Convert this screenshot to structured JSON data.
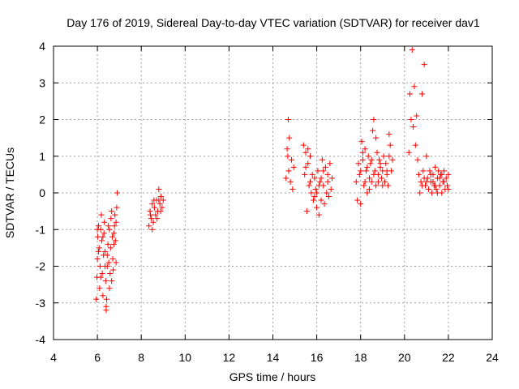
{
  "chart_data": {
    "type": "scatter",
    "title": "Day 176 of 2019, Sidereal Day-to-day VTEC variation (SDTVAR) for receiver dav1",
    "xlabel": "GPS time / hours",
    "ylabel": "SDTVAR / TECUs",
    "xlim": [
      4,
      24
    ],
    "ylim": [
      -4,
      4
    ],
    "xticks": [
      "4",
      "6",
      "8",
      "10",
      "12",
      "14",
      "16",
      "18",
      "20",
      "22",
      "24"
    ],
    "yticks": [
      "-4",
      "-3",
      "-2",
      "-1",
      "0",
      "1",
      "2",
      "3",
      "4"
    ],
    "grid": true,
    "marker": "plus",
    "color": "#ff0000",
    "series": [
      {
        "name": "dav1",
        "points": [
          [
            5.95,
            -2.9
          ],
          [
            5.98,
            -2.3
          ],
          [
            6.0,
            -1.8
          ],
          [
            6.02,
            -1.2
          ],
          [
            6.05,
            -0.9
          ],
          [
            6.08,
            -1.5
          ],
          [
            6.1,
            -2.6
          ],
          [
            6.12,
            -2.0
          ],
          [
            6.15,
            -1.0
          ],
          [
            6.18,
            -0.6
          ],
          [
            6.2,
            -1.3
          ],
          [
            6.22,
            -2.2
          ],
          [
            6.25,
            -2.8
          ],
          [
            6.28,
            -1.7
          ],
          [
            6.3,
            -1.1
          ],
          [
            6.32,
            -0.8
          ],
          [
            6.35,
            -1.6
          ],
          [
            6.38,
            -2.4
          ],
          [
            6.4,
            -3.1
          ],
          [
            6.42,
            -2.9
          ],
          [
            6.45,
            -2.0
          ],
          [
            6.48,
            -1.4
          ],
          [
            6.5,
            -0.9
          ],
          [
            6.52,
            -1.9
          ],
          [
            6.55,
            -2.6
          ],
          [
            6.58,
            -2.2
          ],
          [
            6.6,
            -1.5
          ],
          [
            6.62,
            -0.7
          ],
          [
            6.65,
            -0.5
          ],
          [
            6.68,
            -1.2
          ],
          [
            6.7,
            -1.8
          ],
          [
            6.72,
            -2.1
          ],
          [
            6.75,
            -1.4
          ],
          [
            6.78,
            -0.9
          ],
          [
            6.8,
            -0.6
          ],
          [
            6.82,
            -1.3
          ],
          [
            6.85,
            -1.9
          ],
          [
            6.88,
            -0.4
          ],
          [
            6.9,
            0.0
          ],
          [
            6.05,
            -1.6
          ],
          [
            6.15,
            -2.3
          ],
          [
            6.25,
            -1.2
          ],
          [
            6.35,
            -2.0
          ],
          [
            6.45,
            -1.7
          ],
          [
            6.55,
            -1.0
          ],
          [
            6.65,
            -2.4
          ],
          [
            6.75,
            -1.1
          ],
          [
            6.85,
            -0.8
          ],
          [
            6.0,
            -1.0
          ],
          [
            6.4,
            -3.2
          ],
          [
            8.35,
            -0.9
          ],
          [
            8.4,
            -0.5
          ],
          [
            8.45,
            -0.7
          ],
          [
            8.5,
            -0.3
          ],
          [
            8.55,
            -0.8
          ],
          [
            8.6,
            -0.4
          ],
          [
            8.65,
            -0.6
          ],
          [
            8.7,
            -0.2
          ],
          [
            8.75,
            -0.5
          ],
          [
            8.8,
            0.1
          ],
          [
            8.85,
            -0.3
          ],
          [
            8.9,
            -0.1
          ],
          [
            8.95,
            -0.4
          ],
          [
            9.0,
            -0.2
          ],
          [
            8.42,
            -0.6
          ],
          [
            8.58,
            -0.2
          ],
          [
            8.72,
            -0.7
          ],
          [
            8.88,
            -0.5
          ],
          [
            8.5,
            -1.0
          ],
          [
            8.8,
            -0.2
          ],
          [
            14.6,
            0.4
          ],
          [
            14.65,
            1.2
          ],
          [
            14.7,
            2.0
          ],
          [
            14.72,
            0.6
          ],
          [
            14.75,
            1.5
          ],
          [
            14.8,
            0.3
          ],
          [
            14.85,
            0.9
          ],
          [
            14.9,
            0.1
          ],
          [
            14.95,
            0.7
          ],
          [
            14.68,
            1.0
          ],
          [
            15.4,
            1.3
          ],
          [
            15.45,
            0.5
          ],
          [
            15.5,
            1.1
          ],
          [
            15.55,
            -0.5
          ],
          [
            15.6,
            0.8
          ],
          [
            15.65,
            0.2
          ],
          [
            15.7,
            1.0
          ],
          [
            15.75,
            0.0
          ],
          [
            15.8,
            0.5
          ],
          [
            15.85,
            -0.2
          ],
          [
            15.9,
            0.4
          ],
          [
            15.95,
            0.1
          ],
          [
            16.0,
            -0.4
          ],
          [
            16.05,
            0.6
          ],
          [
            16.1,
            -0.6
          ],
          [
            16.15,
            0.3
          ],
          [
            16.2,
            -0.2
          ],
          [
            16.25,
            0.9
          ],
          [
            16.3,
            0.2
          ],
          [
            16.35,
            -0.3
          ],
          [
            16.4,
            0.7
          ],
          [
            16.45,
            0.0
          ],
          [
            16.5,
            0.5
          ],
          [
            16.55,
            -0.1
          ],
          [
            16.6,
            0.8
          ],
          [
            16.65,
            0.1
          ],
          [
            16.7,
            0.4
          ],
          [
            15.5,
            0.7
          ],
          [
            15.7,
            0.3
          ],
          [
            15.9,
            -0.1
          ],
          [
            16.1,
            0.2
          ],
          [
            16.3,
            0.6
          ],
          [
            16.5,
            0.3
          ],
          [
            15.6,
            1.2
          ],
          [
            16.0,
            0.0
          ],
          [
            16.2,
            0.4
          ],
          [
            17.8,
            0.3
          ],
          [
            17.85,
            -0.2
          ],
          [
            17.9,
            0.8
          ],
          [
            17.95,
            0.5
          ],
          [
            18.0,
            -0.3
          ],
          [
            18.05,
            1.4
          ],
          [
            18.1,
            0.9
          ],
          [
            18.15,
            0.2
          ],
          [
            18.2,
            1.2
          ],
          [
            18.25,
            0.6
          ],
          [
            18.3,
            0.0
          ],
          [
            18.35,
            1.0
          ],
          [
            18.4,
            0.4
          ],
          [
            18.45,
            0.8
          ],
          [
            18.5,
            0.3
          ],
          [
            18.55,
            1.7
          ],
          [
            18.6,
            2.0
          ],
          [
            18.65,
            0.6
          ],
          [
            18.7,
            0.2
          ],
          [
            18.75,
            1.1
          ],
          [
            18.8,
            0.5
          ],
          [
            18.85,
            0.9
          ],
          [
            18.9,
            0.7
          ],
          [
            18.95,
            0.4
          ],
          [
            19.0,
            0.6
          ],
          [
            19.05,
            1.0
          ],
          [
            19.1,
            0.3
          ],
          [
            19.15,
            0.8
          ],
          [
            19.2,
            0.5
          ],
          [
            19.25,
            0.2
          ],
          [
            19.3,
            1.6
          ],
          [
            19.35,
            1.3
          ],
          [
            19.4,
            0.6
          ],
          [
            19.45,
            0.9
          ],
          [
            18.0,
            0.6
          ],
          [
            18.2,
            0.3
          ],
          [
            18.4,
            0.1
          ],
          [
            18.6,
            0.5
          ],
          [
            18.8,
            0.3
          ],
          [
            19.0,
            0.2
          ],
          [
            19.2,
            0.6
          ],
          [
            18.1,
            1.1
          ],
          [
            18.5,
            0.9
          ],
          [
            18.9,
            0.8
          ],
          [
            19.3,
            1.0
          ],
          [
            18.3,
            0.7
          ],
          [
            18.7,
            1.5
          ],
          [
            20.2,
            1.1
          ],
          [
            20.25,
            2.7
          ],
          [
            20.3,
            2.0
          ],
          [
            20.35,
            3.9
          ],
          [
            20.4,
            1.8
          ],
          [
            20.45,
            2.9
          ],
          [
            20.5,
            1.3
          ],
          [
            20.55,
            2.1
          ],
          [
            20.6,
            0.9
          ],
          [
            20.65,
            0.5
          ],
          [
            20.7,
            0.0
          ],
          [
            20.75,
            0.3
          ],
          [
            20.8,
            2.7
          ],
          [
            20.85,
            0.6
          ],
          [
            20.9,
            3.5
          ],
          [
            20.95,
            0.2
          ],
          [
            21.0,
            1.0
          ],
          [
            21.05,
            0.4
          ],
          [
            21.1,
            0.1
          ],
          [
            21.15,
            0.6
          ],
          [
            21.2,
            0.3
          ],
          [
            21.25,
            0.0
          ],
          [
            21.3,
            0.5
          ],
          [
            21.35,
            0.2
          ],
          [
            21.4,
            0.7
          ],
          [
            21.45,
            0.1
          ],
          [
            21.5,
            0.4
          ],
          [
            21.55,
            0.6
          ],
          [
            21.6,
            0.2
          ],
          [
            21.65,
            0.5
          ],
          [
            21.7,
            0.0
          ],
          [
            21.75,
            0.3
          ],
          [
            21.8,
            0.6
          ],
          [
            21.85,
            0.1
          ],
          [
            21.9,
            0.4
          ],
          [
            21.95,
            0.2
          ],
          [
            22.0,
            0.5
          ],
          [
            20.8,
            0.2
          ],
          [
            21.0,
            0.3
          ],
          [
            21.2,
            0.5
          ],
          [
            21.4,
            0.2
          ],
          [
            21.6,
            0.4
          ],
          [
            21.8,
            0.3
          ],
          [
            22.0,
            0.1
          ],
          [
            21.5,
            0.0
          ],
          [
            21.3,
            0.3
          ],
          [
            20.9,
            0.4
          ],
          [
            21.7,
            0.5
          ]
        ]
      }
    ]
  }
}
